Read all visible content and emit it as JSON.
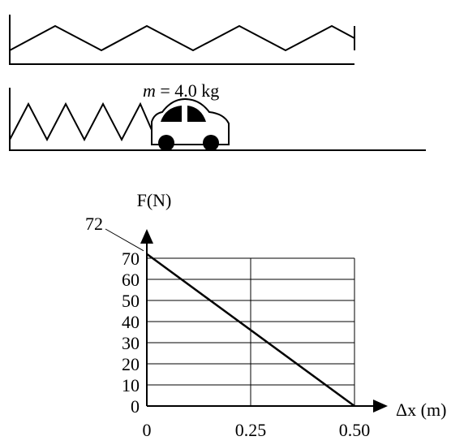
{
  "diagram": {
    "mass_symbol": "m",
    "mass_value": "= 4.0 kg"
  },
  "chart_data": {
    "type": "line",
    "x": [
      0,
      0.5
    ],
    "values": [
      72,
      0
    ],
    "color": "#000000",
    "y_label": "F(N)",
    "x_label": "Δx (m)",
    "xlim": [
      0,
      0.5
    ],
    "ylim": [
      0,
      70
    ],
    "xticks": [
      0,
      0.25,
      {
        "value": 0.5,
        "label": "0.50"
      }
    ],
    "yticks": [
      0,
      10,
      20,
      30,
      40,
      50,
      60,
      70
    ],
    "grid": true
  }
}
